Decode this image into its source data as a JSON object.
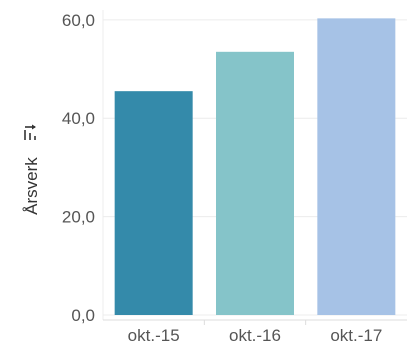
{
  "chart_data": {
    "type": "bar",
    "categories": [
      "okt.-15",
      "okt.-16",
      "okt.-17"
    ],
    "values": [
      45.5,
      53.5,
      60.3
    ],
    "colors": [
      "#348aaa",
      "#85c4c9",
      "#a6c2e6"
    ],
    "title": "",
    "xlabel": "",
    "ylabel": "Årsverk",
    "ylim": [
      0,
      62
    ],
    "yticks": [
      "0,0",
      "20,0",
      "40,0",
      "60,0"
    ],
    "ytick_values": [
      0,
      20,
      40,
      60
    ],
    "grid": true,
    "legend": "none"
  },
  "icons": {
    "sort": "sort-icon"
  }
}
